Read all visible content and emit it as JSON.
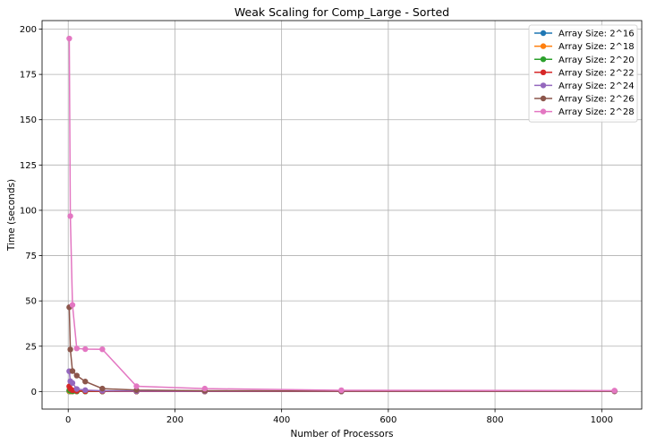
{
  "chart_data": {
    "type": "line",
    "title": "Weak Scaling for Comp_Large - Sorted",
    "xlabel": "Number of Processors",
    "ylabel": "Time (seconds)",
    "xlim": [
      -49,
      1075
    ],
    "ylim": [
      -9.7,
      204.7
    ],
    "xticks": [
      0,
      200,
      400,
      600,
      800,
      1000
    ],
    "yticks": [
      0,
      25,
      50,
      75,
      100,
      125,
      150,
      175,
      200
    ],
    "grid": true,
    "legend_position": "top-right",
    "series": [
      {
        "name": "Array Size: 2^16",
        "color": "#1f77b4",
        "x": [
          2,
          4,
          8,
          16,
          32,
          64,
          128,
          256,
          512,
          1024
        ],
        "y": [
          0.05,
          0.04,
          0.03,
          0.03,
          0.03,
          0.03,
          0.03,
          0.05,
          0.08,
          0.15
        ]
      },
      {
        "name": "Array Size: 2^18",
        "color": "#ff7f0e",
        "x": [
          2,
          4,
          8,
          16,
          32,
          64,
          128,
          256,
          512,
          1024
        ],
        "y": [
          0.18,
          0.1,
          0.06,
          0.05,
          0.04,
          0.04,
          0.04,
          0.05,
          0.08,
          0.15
        ]
      },
      {
        "name": "Array Size: 2^20",
        "color": "#2ca02c",
        "x": [
          2,
          4,
          8,
          16,
          32,
          64,
          128,
          256,
          512,
          1024
        ],
        "y": [
          0.7,
          0.35,
          0.18,
          0.1,
          0.07,
          0.05,
          0.05,
          0.06,
          0.09,
          0.16
        ]
      },
      {
        "name": "Array Size: 2^22",
        "color": "#d62728",
        "x": [
          2,
          4,
          8,
          16,
          32,
          64,
          128,
          256,
          512,
          1024
        ],
        "y": [
          2.8,
          1.4,
          0.7,
          0.36,
          0.2,
          0.11,
          0.08,
          0.08,
          0.1,
          0.17
        ]
      },
      {
        "name": "Array Size: 2^24",
        "color": "#9467bd",
        "x": [
          2,
          4,
          8,
          16,
          32,
          64,
          128,
          256,
          512,
          1024
        ],
        "y": [
          11.2,
          5.7,
          4.7,
          1.4,
          0.75,
          0.4,
          0.22,
          0.15,
          0.15,
          0.2
        ]
      },
      {
        "name": "Array Size: 2^26",
        "color": "#8c564b",
        "x": [
          2,
          4,
          8,
          16,
          32,
          64,
          128,
          256,
          512,
          1024
        ],
        "y": [
          46.5,
          23.2,
          11.3,
          8.8,
          5.5,
          1.6,
          0.8,
          0.45,
          0.3,
          0.3
        ]
      },
      {
        "name": "Array Size: 2^28",
        "color": "#e377c2",
        "x": [
          2,
          4,
          8,
          16,
          32,
          64,
          128,
          256,
          512,
          1024
        ],
        "y": [
          194.8,
          96.8,
          47.8,
          23.8,
          23.4,
          23.3,
          2.9,
          1.6,
          0.7,
          0.5
        ]
      }
    ]
  }
}
